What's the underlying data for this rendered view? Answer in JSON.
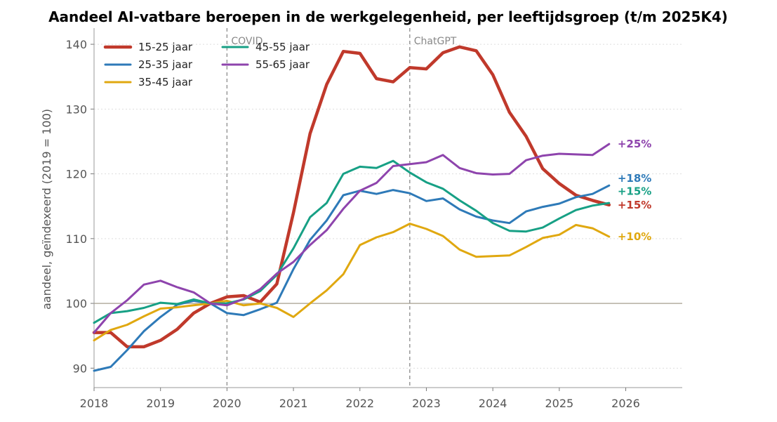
{
  "chart_data": {
    "type": "line",
    "title": "Aandeel AI-vatbare beroepen in de werkgelegenheid, per leeftijdsgroep (t/m 2025K4)",
    "xlabel": "",
    "ylabel": "aandeel, geïndexeerd (2019 = 100)",
    "xlim": [
      2018,
      2026.85
    ],
    "ylim": [
      87,
      142.5
    ],
    "x_ticks": [
      2018,
      2019,
      2020,
      2021,
      2022,
      2023,
      2024,
      2025,
      2026
    ],
    "y_ticks": [
      90,
      100,
      110,
      120,
      130,
      140
    ],
    "grid": "horizontal dotted",
    "legend": "top-left",
    "reference_line": 100,
    "events": [
      {
        "x": 2020.0,
        "label": "COVID"
      },
      {
        "x": 2022.75,
        "label": "ChatGPT"
      }
    ],
    "x": [
      2018.0,
      2018.25,
      2018.5,
      2018.75,
      2019.0,
      2019.25,
      2019.5,
      2019.75,
      2020.0,
      2020.25,
      2020.5,
      2020.75,
      2021.0,
      2021.25,
      2021.5,
      2021.75,
      2022.0,
      2022.25,
      2022.5,
      2022.75,
      2023.0,
      2023.25,
      2023.5,
      2023.75,
      2024.0,
      2024.25,
      2024.5,
      2024.75,
      2025.0,
      2025.25,
      2025.5,
      2025.75
    ],
    "series": [
      {
        "name": "15-25 jaar",
        "color": "#c0392b",
        "width": 4.5,
        "end_label": "+15%",
        "values": [
          95.5,
          95.5,
          93.3,
          93.3,
          94.3,
          96.0,
          98.5,
          100.0,
          101.0,
          101.2,
          100.2,
          103.0,
          114.0,
          126.2,
          133.8,
          138.9,
          138.6,
          134.7,
          134.2,
          136.4,
          136.2,
          138.7,
          139.6,
          139.0,
          135.3,
          129.5,
          125.8,
          120.8,
          118.5,
          116.7,
          115.9,
          115.2
        ]
      },
      {
        "name": "25-35 jaar",
        "color": "#2e7ab8",
        "width": 3,
        "end_label": "+18%",
        "values": [
          89.6,
          90.2,
          92.8,
          95.7,
          97.9,
          99.8,
          100.4,
          100.0,
          98.5,
          98.2,
          99.1,
          100.1,
          105.3,
          109.8,
          112.8,
          116.7,
          117.4,
          116.9,
          117.5,
          117.0,
          115.8,
          116.2,
          114.5,
          113.4,
          112.8,
          112.4,
          114.2,
          114.9,
          115.4,
          116.4,
          116.9,
          118.2
        ]
      },
      {
        "name": "35-45 jaar",
        "color": "#e0a810",
        "width": 3,
        "end_label": "+10%",
        "values": [
          94.3,
          95.9,
          96.7,
          98.0,
          99.2,
          99.4,
          99.7,
          100.0,
          100.4,
          99.7,
          100.0,
          99.3,
          97.9,
          100.0,
          102.0,
          104.5,
          109.0,
          110.2,
          111.0,
          112.3,
          111.5,
          110.4,
          108.3,
          107.2,
          107.3,
          107.4,
          108.7,
          110.1,
          110.6,
          112.1,
          111.6,
          110.3
        ]
      },
      {
        "name": "45-55 jaar",
        "color": "#17a085",
        "width": 3,
        "end_label": "+15%",
        "values": [
          97.0,
          98.5,
          98.8,
          99.3,
          100.1,
          99.9,
          100.6,
          100.0,
          100.0,
          100.6,
          101.9,
          104.4,
          108.5,
          113.3,
          115.5,
          120.0,
          121.1,
          120.9,
          122.0,
          120.2,
          118.7,
          117.7,
          115.9,
          114.3,
          112.4,
          111.2,
          111.1,
          111.7,
          113.1,
          114.4,
          115.1,
          115.5
        ]
      },
      {
        "name": "55-65 jaar",
        "color": "#8e44ad",
        "width": 3,
        "end_label": "+25%",
        "values": [
          95.5,
          98.5,
          100.5,
          102.9,
          103.5,
          102.5,
          101.7,
          100.0,
          99.7,
          100.7,
          102.2,
          104.6,
          106.4,
          109.0,
          111.3,
          114.6,
          117.4,
          118.6,
          121.2,
          121.5,
          121.8,
          122.9,
          120.9,
          120.1,
          119.9,
          120.0,
          122.1,
          122.8,
          123.1,
          123.0,
          122.9,
          124.6
        ]
      }
    ],
    "end_label_y": [
      115.2,
      119.3,
      110.3,
      117.3,
      124.6
    ]
  }
}
